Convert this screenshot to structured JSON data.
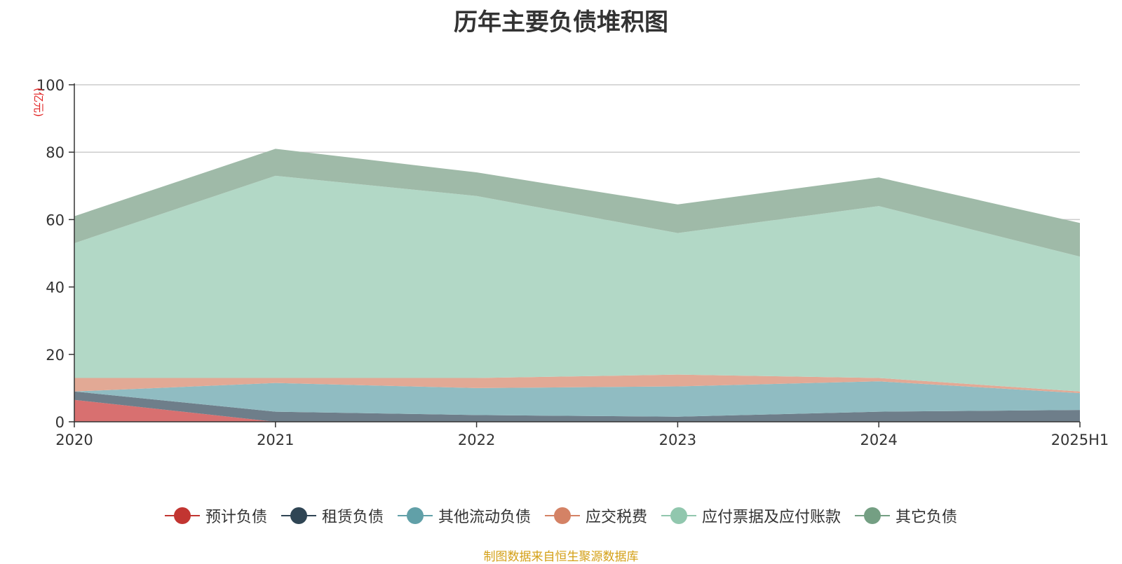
{
  "chart_data": {
    "type": "area",
    "stacked": true,
    "title": "历年主要负债堆积图",
    "ylabel": "(亿元)",
    "categories": [
      "2020",
      "2021",
      "2022",
      "2023",
      "2024",
      "2025H1"
    ],
    "ylim": [
      0,
      100
    ],
    "yticks": [
      0,
      20,
      40,
      60,
      80,
      100
    ],
    "grid": true,
    "legend_position": "bottom",
    "series": [
      {
        "name": "预计负债",
        "color": "#c23531",
        "fill": "#d87070",
        "values": [
          6.5,
          0,
          0,
          0,
          0,
          0
        ]
      },
      {
        "name": "租赁负债",
        "color": "#2f4554",
        "fill": "#6e7e8a",
        "values": [
          2.5,
          3,
          2,
          1.5,
          3,
          3.5
        ]
      },
      {
        "name": "其他流动负债",
        "color": "#61a0a8",
        "fill": "#90bcc2",
        "values": [
          0,
          8.5,
          8,
          9,
          9,
          5
        ]
      },
      {
        "name": "应交税费",
        "color": "#d48265",
        "fill": "#e2a995",
        "values": [
          4,
          1.5,
          3,
          3.5,
          1,
          0.5
        ]
      },
      {
        "name": "应付票据及应付账款",
        "color": "#91c7ae",
        "fill": "#b2d8c6",
        "values": [
          40,
          60,
          54,
          42,
          51,
          40
        ]
      },
      {
        "name": "其它负债",
        "color": "#749f83",
        "fill": "#9fbaa8",
        "values": [
          8,
          8,
          7,
          8.5,
          8.5,
          10
        ]
      }
    ]
  },
  "source_note": "制图数据来自恒生聚源数据库"
}
